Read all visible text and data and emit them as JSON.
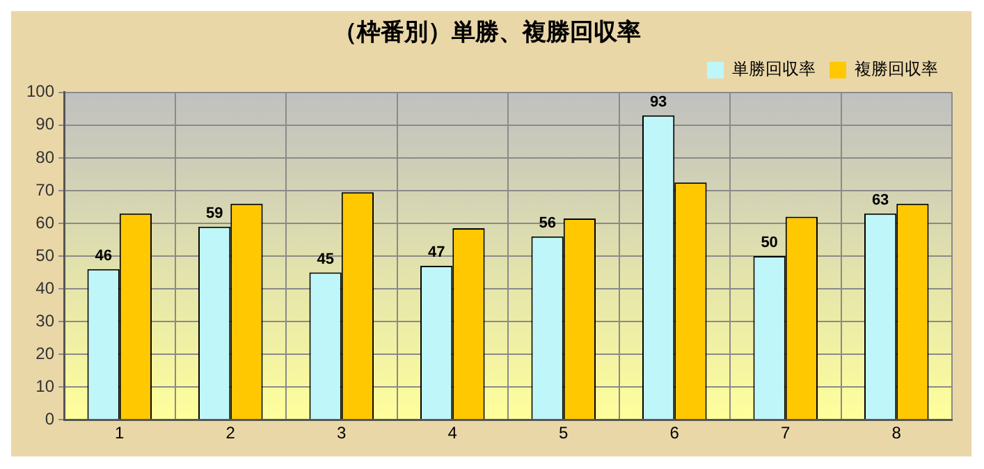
{
  "chart_data": {
    "type": "bar",
    "title": "（枠番別）単勝、複勝回収率",
    "categories": [
      "1",
      "2",
      "3",
      "4",
      "5",
      "6",
      "7",
      "8"
    ],
    "series": [
      {
        "name": "単勝回収率",
        "color": "#bff6fa",
        "values": [
          46,
          59,
          45,
          47,
          56,
          93,
          50,
          63
        ],
        "value_labels": [
          "46",
          "59",
          "45",
          "47",
          "56",
          "93",
          "50",
          "63"
        ]
      },
      {
        "name": "複勝回収率",
        "color": "#ffc800",
        "values": [
          63,
          66,
          69.5,
          58.5,
          61.5,
          72.5,
          62,
          66
        ]
      }
    ],
    "ylim": [
      0,
      100
    ],
    "yticks": [
      0,
      10,
      20,
      30,
      40,
      50,
      60,
      70,
      80,
      90,
      100
    ],
    "grid": true,
    "legend": "top right"
  }
}
